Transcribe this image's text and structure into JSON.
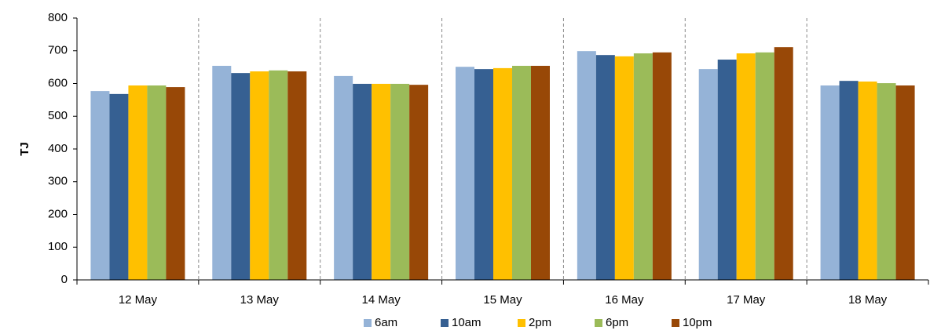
{
  "chart_data": {
    "type": "bar",
    "y_label": "TJ",
    "categories": [
      "12 May",
      "13 May",
      "14 May",
      "15 May",
      "16 May",
      "17 May",
      "18 May"
    ],
    "series": [
      {
        "name": "6am",
        "color": "#95b3d7",
        "values": [
          577,
          654,
          623,
          651,
          699,
          644,
          594
        ]
      },
      {
        "name": "10am",
        "color": "#366092",
        "values": [
          568,
          632,
          599,
          644,
          687,
          673,
          608
        ]
      },
      {
        "name": "2pm",
        "color": "#ffc000",
        "values": [
          594,
          637,
          599,
          647,
          683,
          692,
          606
        ]
      },
      {
        "name": "6pm",
        "color": "#9bbb59",
        "values": [
          594,
          640,
          599,
          654,
          692,
          695,
          601
        ]
      },
      {
        "name": "10pm",
        "color": "#984807",
        "values": [
          589,
          637,
          596,
          654,
          695,
          711,
          594
        ]
      }
    ],
    "ylim": [
      0,
      800
    ],
    "yticks": [
      0,
      100,
      200,
      300,
      400,
      500,
      600,
      700,
      800
    ]
  }
}
